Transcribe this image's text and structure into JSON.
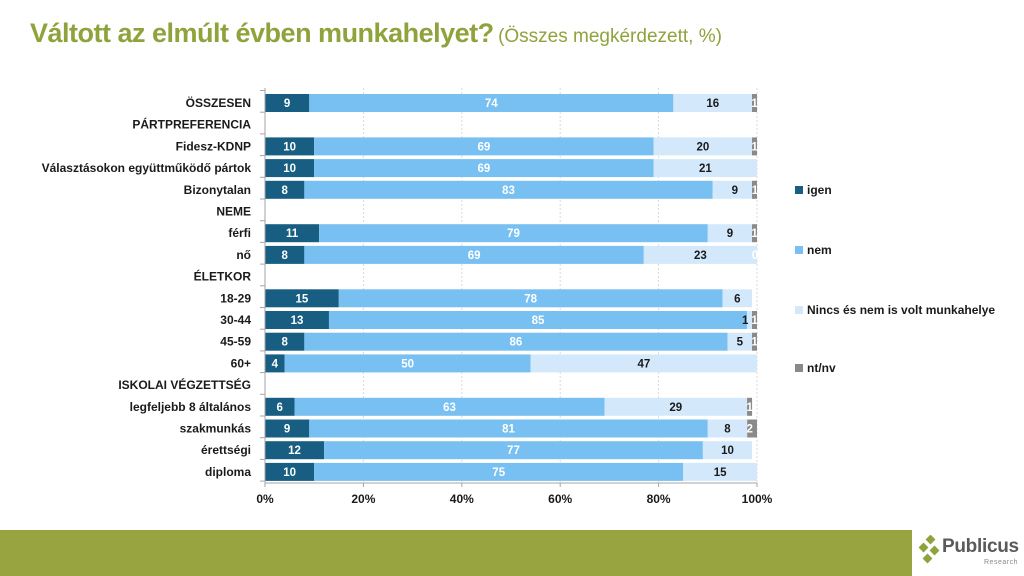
{
  "title": {
    "main": "Váltott az elmúlt évben munkahelyet?",
    "sub": "(Összes megkérdezett, %)"
  },
  "chart_data": {
    "type": "bar",
    "orientation": "horizontal",
    "stacked": "percent",
    "title": "Váltott az elmúlt évben munkahelyet? (Összes megkérdezett, %)",
    "xlabel": "",
    "ylabel": "",
    "xlim": [
      0,
      100
    ],
    "x_ticks": [
      "0%",
      "20%",
      "40%",
      "60%",
      "80%",
      "100%"
    ],
    "grid": "vertical-dashed",
    "legend_position": "right",
    "categories": [
      "ÖSSZESEN",
      "PÁRTPREFERENCIA",
      "Fidesz-KDNP",
      "Választásokon együttműködő pártok",
      "Bizonytalan",
      "NEME",
      "férfi",
      "nő",
      "ÉLETKOR",
      "18-29",
      "30-44",
      "45-59",
      "60+",
      "ISKOLAI VÉGZETTSÉG",
      "legfeljebb 8 általános",
      "szakmunkás",
      "érettségi",
      "diploma"
    ],
    "series": [
      {
        "name": "igen",
        "color": "#175e82",
        "label_color": "#ffffff",
        "values": [
          9,
          null,
          10,
          10,
          8,
          null,
          11,
          8,
          null,
          15,
          13,
          8,
          4,
          null,
          6,
          9,
          12,
          10
        ]
      },
      {
        "name": "nem",
        "color": "#79c0f2",
        "label_color": "#ffffff",
        "values": [
          74,
          null,
          69,
          69,
          83,
          null,
          79,
          69,
          null,
          78,
          85,
          86,
          50,
          null,
          63,
          81,
          77,
          75
        ]
      },
      {
        "name": "Nincs és nem is volt munkahelye",
        "color": "#d3e9fb",
        "label_color": "#1a1a1a",
        "values": [
          16,
          null,
          20,
          21,
          9,
          null,
          9,
          23,
          null,
          6,
          1,
          5,
          47,
          null,
          29,
          8,
          10,
          15
        ]
      },
      {
        "name": "nt/nv",
        "color": "#8a8a8a",
        "label_color": "#ffffff",
        "values": [
          1,
          null,
          1,
          null,
          1,
          null,
          1,
          0,
          null,
          null,
          1,
          1,
          null,
          null,
          1,
          2,
          null,
          null
        ]
      }
    ]
  },
  "logo": {
    "name": "Publicus",
    "tagline": "Research"
  }
}
